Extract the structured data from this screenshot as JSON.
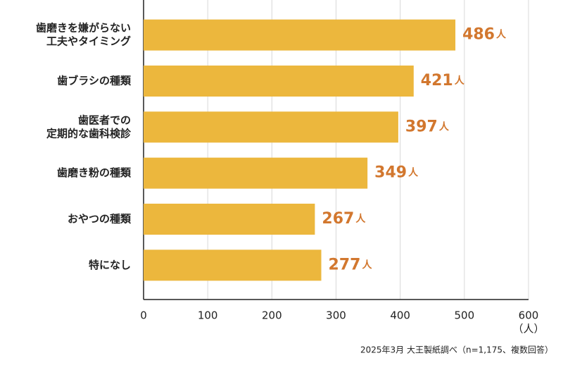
{
  "chart_data": {
    "type": "bar",
    "orientation": "horizontal",
    "categories": [
      [
        "歯磨きを嫌がらない",
        "工夫やタイミング"
      ],
      [
        "歯ブラシの種類"
      ],
      [
        "歯医者での",
        "定期的な歯科検診"
      ],
      [
        "歯磨き粉の種類"
      ],
      [
        "おやつの種類"
      ],
      [
        "特になし"
      ]
    ],
    "values": [
      486,
      421,
      397,
      349,
      267,
      277
    ],
    "value_unit": "人",
    "color": "#ecb73d",
    "label_color": "#d2772e",
    "xlim": [
      0,
      600
    ],
    "xticks": [
      0,
      100,
      200,
      300,
      400,
      500,
      600
    ],
    "x_label": "（人）",
    "grid": true,
    "footnote": "2025年3月 大王製紙調べ（n=1,175、複数回答）"
  }
}
